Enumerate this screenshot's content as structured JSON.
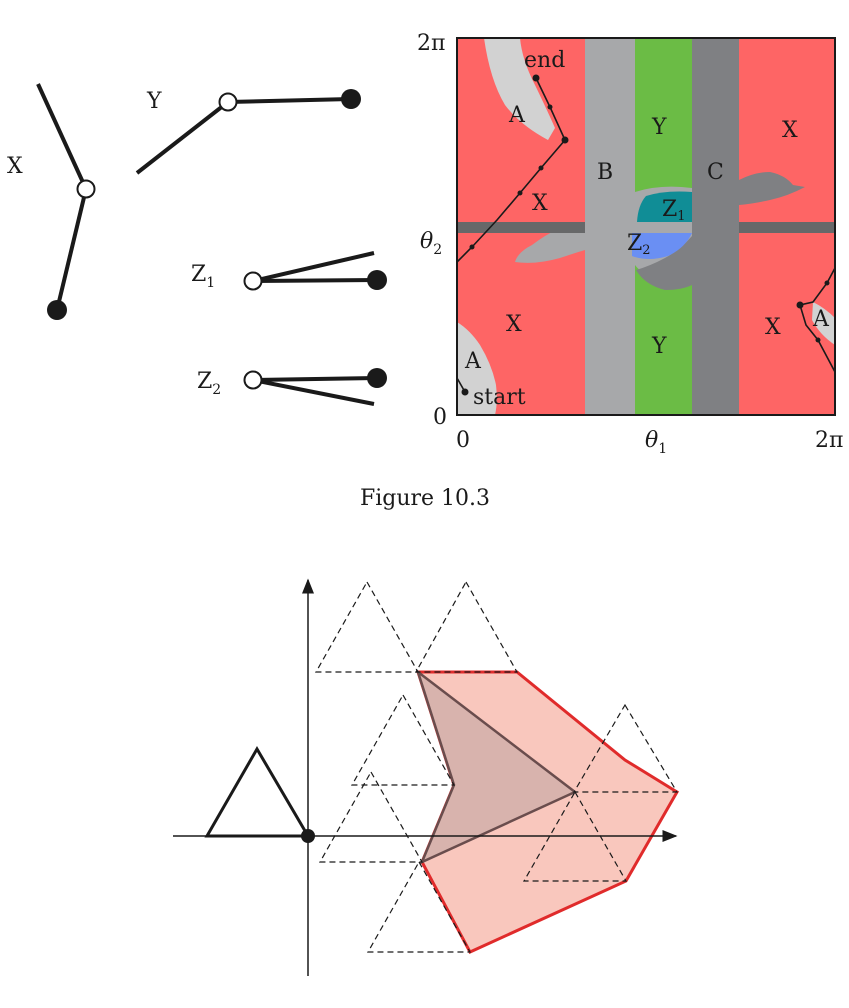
{
  "figure_top": {
    "caption": "Figure 10.3",
    "arm_labels": {
      "x": "X",
      "y": "Y",
      "z1_main": "Z",
      "z1_sub": "1",
      "z2_main": "Z",
      "z2_sub": "2"
    },
    "cspace": {
      "axis_top": "2π",
      "axis_theta2": "θ",
      "axis_theta2_sub": "2",
      "axis_zero_y": "0",
      "axis_zero_x": "0",
      "axis_theta1": "θ",
      "axis_theta1_sub": "1",
      "axis_right": "2π",
      "region_labels": {
        "a_top": "A",
        "a_bottom": "A",
        "a_right": "A",
        "b": "B",
        "c": "C",
        "y_top": "Y",
        "y_bottom": "Y",
        "x_top_right": "X",
        "x_mid_left": "X",
        "x_bottom_left": "X",
        "x_bottom_right": "X",
        "z1_main": "Z",
        "z1_sub": "1",
        "z2_main": "Z",
        "z2_sub": "2"
      },
      "path_end_label": "end",
      "path_start_label": "start",
      "colors": {
        "x_region": "#fe6565",
        "a_region": "#d2d2d2",
        "b_region": "#a7a8aa",
        "c_region": "#7f8083",
        "y_region": "#6bbc45",
        "z1_region": "#108d96",
        "z2_region": "#6a8ff3"
      }
    }
  },
  "figure_bottom": {
    "colors": {
      "minkowski_fill": "#f9c7bd",
      "minkowski_stroke": "#e02b2b",
      "obstacle_fill": "#d8b3ad",
      "obstacle_stroke": "#6a4d4d"
    }
  }
}
